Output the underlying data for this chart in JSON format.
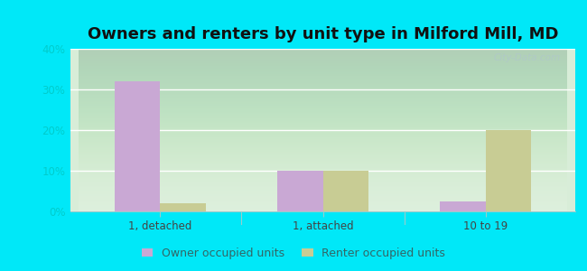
{
  "title": "Owners and renters by unit type in Milford Mill, MD",
  "categories": [
    "1, detached",
    "1, attached",
    "10 to 19"
  ],
  "owner_values": [
    32,
    10,
    2.5
  ],
  "renter_values": [
    2,
    10,
    20
  ],
  "owner_color": "#c9a8d4",
  "renter_color": "#c8cc94",
  "ylim": [
    0,
    40
  ],
  "yticks": [
    0,
    10,
    20,
    30,
    40
  ],
  "yticklabels": [
    "0%",
    "10%",
    "20%",
    "30%",
    "40%"
  ],
  "bg_color": "#00e8f8",
  "plot_bg": "#d8edd8",
  "legend_owner": "Owner occupied units",
  "legend_renter": "Renter occupied units",
  "bar_width": 0.28,
  "title_fontsize": 13,
  "axis_fontsize": 8.5,
  "legend_fontsize": 9,
  "tick_label_color": "#00cccc",
  "watermark": "City-Data.com",
  "grid_color": "#ffffff",
  "separator_color": "#99cccc"
}
